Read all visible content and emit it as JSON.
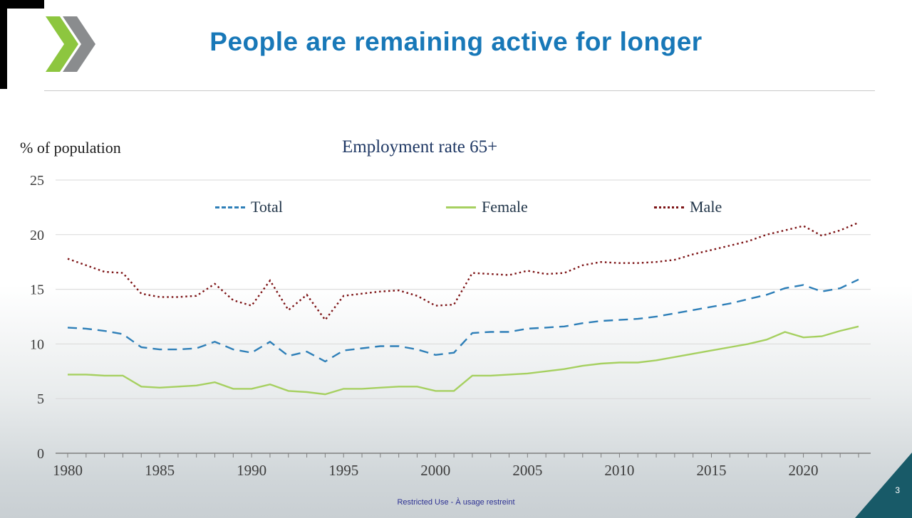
{
  "slide": {
    "title": "People are remaining active for longer",
    "footer_classification": "Restricted Use - À usage restreint",
    "page_number": "3"
  },
  "logo": {
    "name": "oecd-style-double-chevron",
    "green": "#8DC63F",
    "gray": "#8A8C8E"
  },
  "colors": {
    "title_blue": "#1878B8",
    "chart_title_navy": "#1F3864",
    "footer_blue": "#2D3193",
    "corner_triangle_teal": "#185A68",
    "gridline_gray": "#D8D8D8",
    "axis_gray": "#7F7F7F"
  },
  "chart_data": {
    "type": "line",
    "title": "Employment rate 65+",
    "ylabel": "% of population",
    "xlabel": "",
    "grid": "horizontal",
    "legend_position": "top-inline",
    "ylim": [
      0,
      25
    ],
    "yticks": [
      0,
      5,
      10,
      15,
      20,
      25
    ],
    "xticks": [
      1980,
      1985,
      1990,
      1995,
      2000,
      2005,
      2010,
      2015,
      2020
    ],
    "x": [
      1980,
      1981,
      1982,
      1983,
      1984,
      1985,
      1986,
      1987,
      1988,
      1989,
      1990,
      1991,
      1992,
      1993,
      1994,
      1995,
      1996,
      1997,
      1998,
      1999,
      2000,
      2001,
      2002,
      2003,
      2004,
      2005,
      2006,
      2007,
      2008,
      2009,
      2010,
      2011,
      2012,
      2013,
      2014,
      2015,
      2016,
      2017,
      2018,
      2019,
      2020,
      2021,
      2022,
      2023
    ],
    "series": [
      {
        "name": "Total",
        "color": "#2E7FB8",
        "line_style": "dashed",
        "dash": "13 8",
        "values": [
          11.5,
          11.4,
          11.2,
          10.9,
          9.7,
          9.5,
          9.5,
          9.6,
          10.2,
          9.5,
          9.2,
          10.2,
          8.9,
          9.3,
          8.4,
          9.4,
          9.6,
          9.8,
          9.8,
          9.5,
          9.0,
          9.2,
          11.0,
          11.1,
          11.1,
          11.4,
          11.5,
          11.6,
          11.9,
          12.1,
          12.2,
          12.3,
          12.5,
          12.8,
          13.1,
          13.4,
          13.7,
          14.1,
          14.5,
          15.1,
          15.4,
          14.8,
          15.1,
          15.9
        ]
      },
      {
        "name": "Female",
        "color": "#A6D060",
        "line_style": "solid",
        "dash": "",
        "values": [
          7.2,
          7.2,
          7.1,
          7.1,
          6.1,
          6.0,
          6.1,
          6.2,
          6.5,
          5.9,
          5.9,
          6.3,
          5.7,
          5.6,
          5.4,
          5.9,
          5.9,
          6.0,
          6.1,
          6.1,
          5.7,
          5.7,
          7.1,
          7.1,
          7.2,
          7.3,
          7.5,
          7.7,
          8.0,
          8.2,
          8.3,
          8.3,
          8.5,
          8.8,
          9.1,
          9.4,
          9.7,
          10.0,
          10.4,
          11.1,
          10.6,
          10.7,
          11.2,
          11.6
        ]
      },
      {
        "name": "Male",
        "color": "#7C1214",
        "line_style": "dotted",
        "dash": "2.5 4",
        "values": [
          17.8,
          17.2,
          16.6,
          16.5,
          14.6,
          14.3,
          14.3,
          14.4,
          15.5,
          14.0,
          13.5,
          15.8,
          13.1,
          14.5,
          12.2,
          14.4,
          14.6,
          14.8,
          14.9,
          14.4,
          13.5,
          13.6,
          16.5,
          16.4,
          16.3,
          16.7,
          16.4,
          16.5,
          17.2,
          17.5,
          17.4,
          17.4,
          17.5,
          17.7,
          18.2,
          18.6,
          19.0,
          19.4,
          20.0,
          20.4,
          20.8,
          19.9,
          20.4,
          21.1
        ]
      }
    ]
  }
}
